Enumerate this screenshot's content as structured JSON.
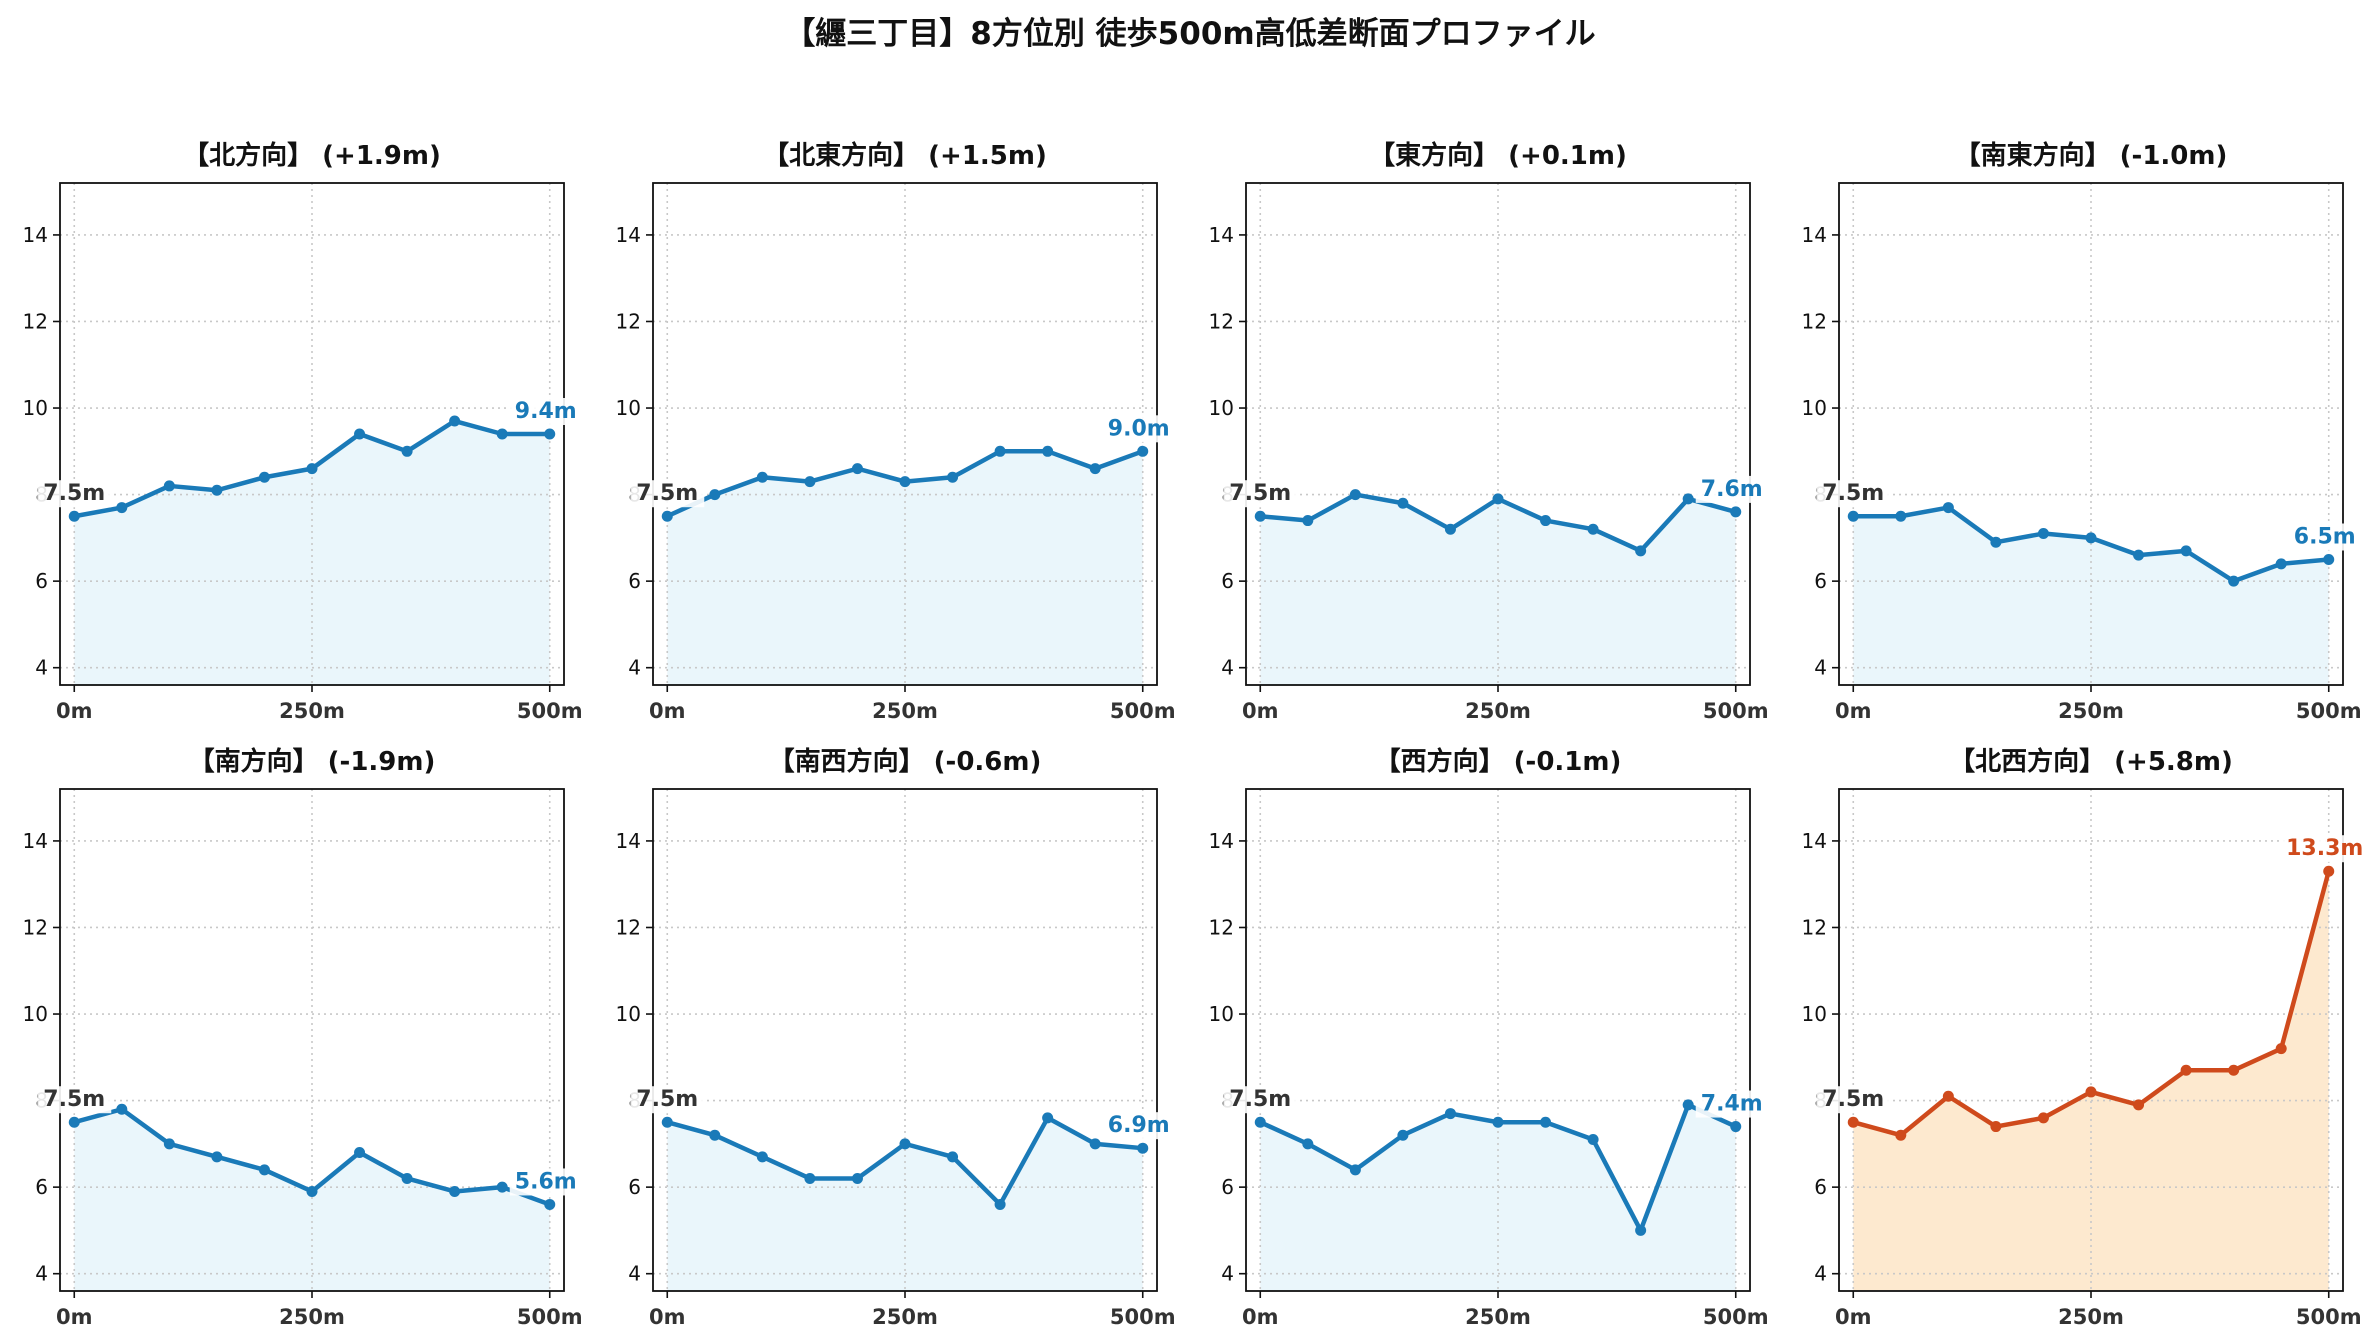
{
  "title": "【纒三丁目】8方位別 徒歩500m高低差断面プロファイル",
  "colors": {
    "normal_line": "#1a7ab8",
    "normal_fill": "#eaf6fb",
    "highlight_line": "#cf4a1c",
    "highlight_fill": "#fde9cf",
    "start_label": "#333333"
  },
  "chart_data": [
    {
      "type": "area",
      "title": "【北方向】 (+1.9m)",
      "x": [
        0,
        50,
        100,
        150,
        200,
        250,
        300,
        350,
        400,
        450,
        500
      ],
      "y": [
        7.5,
        7.7,
        8.2,
        8.1,
        8.4,
        8.6,
        9.4,
        9.0,
        9.7,
        9.4,
        9.4
      ],
      "start_label": "7.5m",
      "end_label": "9.4m",
      "xticks": [
        "0m",
        "250m",
        "500m"
      ],
      "yticks": [
        "4",
        "6",
        "8",
        "10",
        "12",
        "14"
      ],
      "xlim": [
        -15,
        515
      ],
      "ylim": [
        3.6,
        15.2
      ],
      "grid": true,
      "highlight": false
    },
    {
      "type": "area",
      "title": "【北東方向】 (+1.5m)",
      "x": [
        0,
        50,
        100,
        150,
        200,
        250,
        300,
        350,
        400,
        450,
        500
      ],
      "y": [
        7.5,
        8.0,
        8.4,
        8.3,
        8.6,
        8.3,
        8.4,
        9.0,
        9.0,
        8.6,
        9.0
      ],
      "start_label": "7.5m",
      "end_label": "9.0m",
      "xticks": [
        "0m",
        "250m",
        "500m"
      ],
      "yticks": [
        "4",
        "6",
        "8",
        "10",
        "12",
        "14"
      ],
      "xlim": [
        -15,
        515
      ],
      "ylim": [
        3.6,
        15.2
      ],
      "grid": true,
      "highlight": false
    },
    {
      "type": "area",
      "title": "【東方向】 (+0.1m)",
      "x": [
        0,
        50,
        100,
        150,
        200,
        250,
        300,
        350,
        400,
        450,
        500
      ],
      "y": [
        7.5,
        7.4,
        8.0,
        7.8,
        7.2,
        7.9,
        7.4,
        7.2,
        6.7,
        7.9,
        7.6
      ],
      "start_label": "7.5m",
      "end_label": "7.6m",
      "xticks": [
        "0m",
        "250m",
        "500m"
      ],
      "yticks": [
        "4",
        "6",
        "8",
        "10",
        "12",
        "14"
      ],
      "xlim": [
        -15,
        515
      ],
      "ylim": [
        3.6,
        15.2
      ],
      "grid": true,
      "highlight": false
    },
    {
      "type": "area",
      "title": "【南東方向】 (-1.0m)",
      "x": [
        0,
        50,
        100,
        150,
        200,
        250,
        300,
        350,
        400,
        450,
        500
      ],
      "y": [
        7.5,
        7.5,
        7.7,
        6.9,
        7.1,
        7.0,
        6.6,
        6.7,
        6.0,
        6.4,
        6.5
      ],
      "start_label": "7.5m",
      "end_label": "6.5m",
      "xticks": [
        "0m",
        "250m",
        "500m"
      ],
      "yticks": [
        "4",
        "6",
        "8",
        "10",
        "12",
        "14"
      ],
      "xlim": [
        -15,
        515
      ],
      "ylim": [
        3.6,
        15.2
      ],
      "grid": true,
      "highlight": false
    },
    {
      "type": "area",
      "title": "【南方向】 (-1.9m)",
      "x": [
        0,
        50,
        100,
        150,
        200,
        250,
        300,
        350,
        400,
        450,
        500
      ],
      "y": [
        7.5,
        7.8,
        7.0,
        6.7,
        6.4,
        5.9,
        6.8,
        6.2,
        5.9,
        6.0,
        5.6
      ],
      "start_label": "7.5m",
      "end_label": "5.6m",
      "xticks": [
        "0m",
        "250m",
        "500m"
      ],
      "yticks": [
        "4",
        "6",
        "8",
        "10",
        "12",
        "14"
      ],
      "xlim": [
        -15,
        515
      ],
      "ylim": [
        3.6,
        15.2
      ],
      "grid": true,
      "highlight": false
    },
    {
      "type": "area",
      "title": "【南西方向】 (-0.6m)",
      "x": [
        0,
        50,
        100,
        150,
        200,
        250,
        300,
        350,
        400,
        450,
        500
      ],
      "y": [
        7.5,
        7.2,
        6.7,
        6.2,
        6.2,
        7.0,
        6.7,
        5.6,
        7.6,
        7.0,
        6.9
      ],
      "start_label": "7.5m",
      "end_label": "6.9m",
      "xticks": [
        "0m",
        "250m",
        "500m"
      ],
      "yticks": [
        "4",
        "6",
        "8",
        "10",
        "12",
        "14"
      ],
      "xlim": [
        -15,
        515
      ],
      "ylim": [
        3.6,
        15.2
      ],
      "grid": true,
      "highlight": false
    },
    {
      "type": "area",
      "title": "【西方向】 (-0.1m)",
      "x": [
        0,
        50,
        100,
        150,
        200,
        250,
        300,
        350,
        400,
        450,
        500
      ],
      "y": [
        7.5,
        7.0,
        6.4,
        7.2,
        7.7,
        7.5,
        7.5,
        7.1,
        5.0,
        7.9,
        7.4
      ],
      "start_label": "7.5m",
      "end_label": "7.4m",
      "xticks": [
        "0m",
        "250m",
        "500m"
      ],
      "yticks": [
        "4",
        "6",
        "8",
        "10",
        "12",
        "14"
      ],
      "xlim": [
        -15,
        515
      ],
      "ylim": [
        3.6,
        15.2
      ],
      "grid": true,
      "highlight": false
    },
    {
      "type": "area",
      "title": "【北西方向】 (+5.8m)",
      "x": [
        0,
        50,
        100,
        150,
        200,
        250,
        300,
        350,
        400,
        450,
        500
      ],
      "y": [
        7.5,
        7.2,
        8.1,
        7.4,
        7.6,
        8.2,
        7.9,
        8.7,
        8.7,
        9.2,
        13.3
      ],
      "start_label": "7.5m",
      "end_label": "13.3m",
      "xticks": [
        "0m",
        "250m",
        "500m"
      ],
      "yticks": [
        "4",
        "6",
        "8",
        "10",
        "12",
        "14"
      ],
      "xlim": [
        -15,
        515
      ],
      "ylim": [
        3.6,
        15.2
      ],
      "grid": true,
      "highlight": true
    }
  ]
}
